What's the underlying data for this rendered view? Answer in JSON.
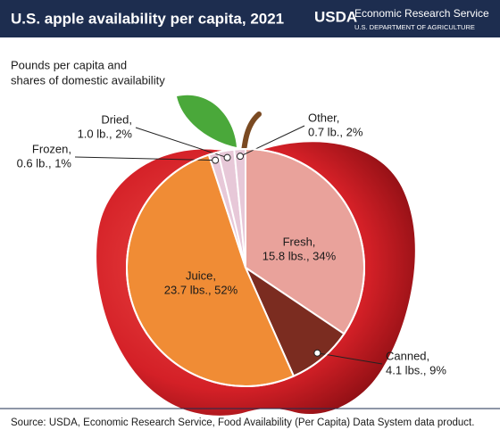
{
  "chart_data": {
    "type": "pie",
    "title": "U.S. apple availability per capita, 2021",
    "subtitle": [
      "Pounds per capita and",
      "shares of domestic availability"
    ],
    "logo": "USDA",
    "agency": "Economic Research Service",
    "department": "U.S. DEPARTMENT OF AGRICULTURE",
    "source": "Source: USDA, Economic Research Service, Food Availability (Per Capita) Data System data product.",
    "categories": [
      "Fresh,",
      "Canned,",
      "Juice,",
      "Frozen,",
      "Dried,",
      "Other,"
    ],
    "values": [
      15.8,
      4.1,
      23.7,
      0.6,
      1.0,
      0.7
    ],
    "value_labels": [
      "15.8 lbs., 34%",
      "4.1 lbs., 9%",
      "23.7 lbs., 52%",
      "0.6 lb., 1%",
      "1.0 lb., 2%",
      "0.7 lb., 2%"
    ],
    "colors": [
      "#e9a29b",
      "#7b2c20",
      "#f08c35",
      "#e7c8d8",
      "#e7c8d8",
      "#e7c8d8"
    ]
  }
}
